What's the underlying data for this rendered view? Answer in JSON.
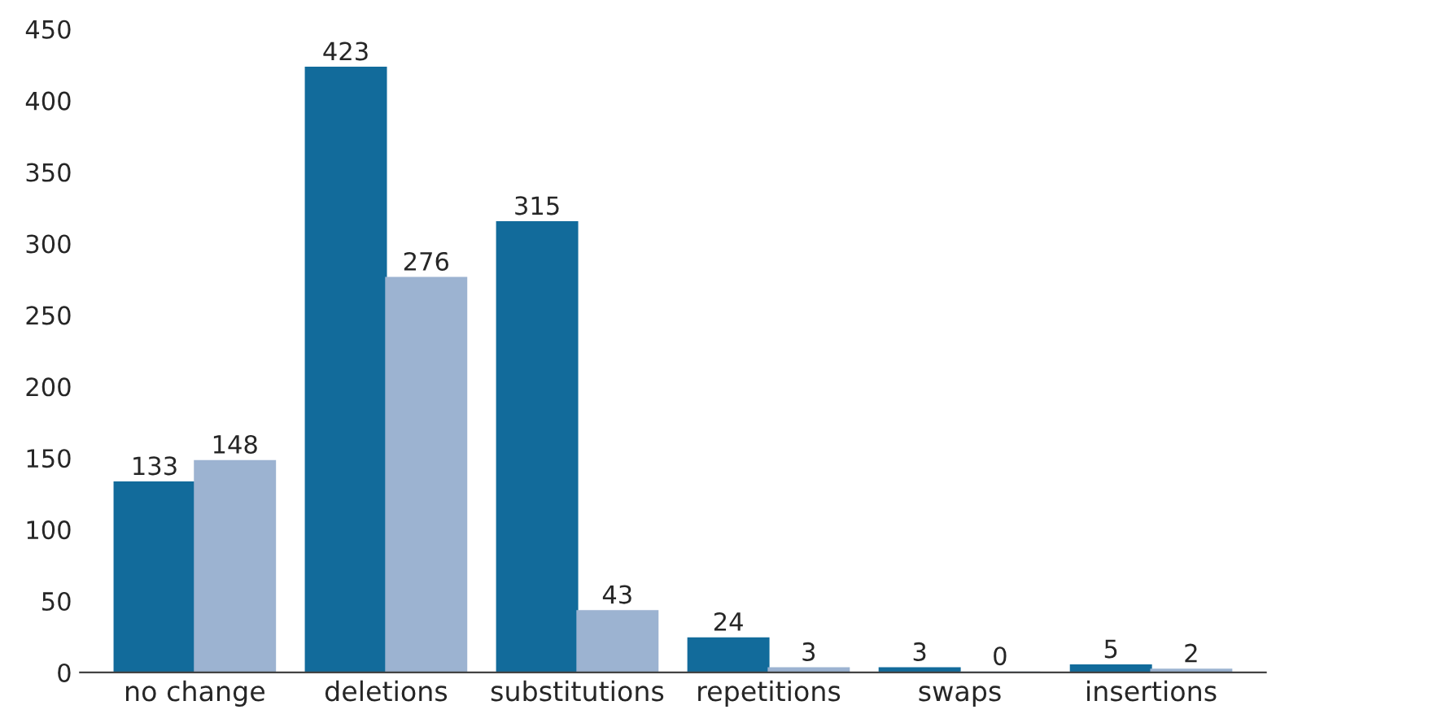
{
  "chart_data": {
    "type": "bar",
    "categories": [
      "no change",
      "deletions",
      "substitutions",
      "repetitions",
      "swaps",
      "insertions"
    ],
    "series": [
      {
        "color": "#126b9b",
        "values": [
          133,
          423,
          315,
          24,
          3,
          5
        ]
      },
      {
        "color": "#9cb3d1",
        "values": [
          148,
          276,
          43,
          3,
          0,
          2
        ]
      }
    ],
    "ylim": [
      0,
      450
    ],
    "yticks": [
      0,
      50,
      100,
      150,
      200,
      250,
      300,
      350,
      400,
      450
    ],
    "data_labels": true,
    "grid": false
  }
}
